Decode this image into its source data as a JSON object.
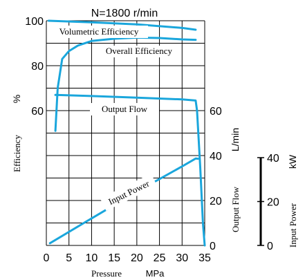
{
  "chart_data": {
    "type": "line",
    "title": "N=1800 r/min",
    "xlabel": "Pressure",
    "xunit": "MPa",
    "xlim": [
      0,
      35
    ],
    "x_ticks": [
      "0",
      "5",
      "10",
      "15",
      "20",
      "25",
      "30",
      "35"
    ],
    "efficiency_axis": {
      "label": "Efficiency",
      "unit": "%",
      "ticks": [
        {
          "value": 60,
          "label": "60"
        },
        {
          "value": 80,
          "label": "80"
        },
        {
          "value": 100,
          "label": "100"
        }
      ]
    },
    "flow_axis": {
      "label": "Output Flow",
      "unit": "L/min",
      "ticks": [
        {
          "value": 0,
          "label": "0"
        },
        {
          "value": 20,
          "label": "20"
        },
        {
          "value": 40,
          "label": "40"
        },
        {
          "value": 60,
          "label": "60"
        }
      ]
    },
    "power_axis": {
      "label": "Input Power",
      "unit": "kW",
      "ticks": [
        {
          "value": 0,
          "label": "0"
        },
        {
          "value": 20,
          "label": "20"
        },
        {
          "value": 40,
          "label": "40"
        }
      ]
    },
    "grid": true,
    "line_color": "#1aa6dc",
    "series": [
      {
        "name": "Volumetric Efficiency",
        "axis": "efficiency",
        "points": [
          [
            0.5,
            100
          ],
          [
            10,
            99.3
          ],
          [
            20,
            98.4
          ],
          [
            30,
            96.8
          ],
          [
            33,
            96
          ]
        ]
      },
      {
        "name": "Overall Efficiency",
        "axis": "efficiency",
        "points": [
          [
            2,
            51
          ],
          [
            2.5,
            70
          ],
          [
            3.5,
            83
          ],
          [
            5,
            86.5
          ],
          [
            7,
            89
          ],
          [
            10,
            91
          ],
          [
            15,
            92
          ],
          [
            20,
            92.5
          ],
          [
            25,
            92.3
          ],
          [
            30,
            91.7
          ],
          [
            33,
            91.5
          ]
        ]
      },
      {
        "name": "Output Flow",
        "axis": "flow",
        "points": [
          [
            2,
            67
          ],
          [
            10,
            66.5
          ],
          [
            20,
            65.8
          ],
          [
            30,
            65
          ],
          [
            33,
            64.5
          ],
          [
            33.3,
            60
          ],
          [
            34,
            35
          ],
          [
            34.6,
            10
          ],
          [
            35,
            0
          ]
        ]
      },
      {
        "name": "Input Power",
        "axis": "power",
        "points": [
          [
            0.8,
            1
          ],
          [
            10,
            12.3
          ],
          [
            20,
            24.5
          ],
          [
            30,
            36
          ],
          [
            33,
            39.6
          ],
          [
            33.5,
            39.5
          ]
        ]
      }
    ]
  }
}
